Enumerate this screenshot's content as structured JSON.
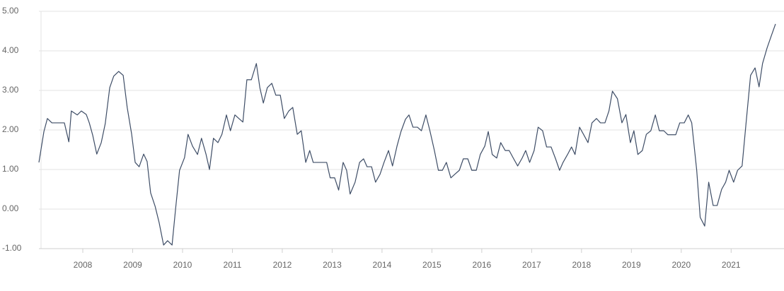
{
  "chart_data": {
    "type": "line",
    "xlim": [
      2007.12,
      2021.89
    ],
    "xticks": [
      2008,
      2009,
      2010,
      2011,
      2012,
      2013,
      2014,
      2015,
      2016,
      2017,
      2018,
      2019,
      2020,
      2021
    ],
    "ylim": [
      -1,
      5
    ],
    "yticks": [
      {
        "value": -1,
        "label": "-1.00"
      },
      {
        "value": 0,
        "label": "0.00"
      },
      {
        "value": 1,
        "label": "1.00"
      },
      {
        "value": 2,
        "label": "2.00"
      },
      {
        "value": 3,
        "label": "3.00"
      },
      {
        "value": 4,
        "label": "4.00"
      },
      {
        "value": 5,
        "label": "5.00"
      }
    ],
    "grid": true,
    "color": "#3e4d66",
    "x": [
      2007.12,
      2007.22,
      2007.29,
      2007.38,
      2007.63,
      2007.72,
      2007.77,
      2007.89,
      2007.97,
      2008.07,
      2008.13,
      2008.2,
      2008.28,
      2008.37,
      2008.45,
      2008.54,
      2008.62,
      2008.72,
      2008.81,
      2008.89,
      2008.98,
      2009.05,
      2009.13,
      2009.22,
      2009.29,
      2009.36,
      2009.45,
      2009.53,
      2009.62,
      2009.7,
      2009.79,
      2009.86,
      2009.94,
      2010.04,
      2010.11,
      2010.2,
      2010.3,
      2010.38,
      2010.47,
      2010.54,
      2010.62,
      2010.71,
      2010.79,
      2010.88,
      2010.96,
      2011.05,
      2011.13,
      2011.21,
      2011.29,
      2011.38,
      2011.48,
      2011.55,
      2011.62,
      2011.7,
      2011.79,
      2011.87,
      2011.96,
      2012.04,
      2012.13,
      2012.21,
      2012.3,
      2012.38,
      2012.47,
      2012.55,
      2012.62,
      2012.89,
      2012.96,
      2013.05,
      2013.13,
      2013.22,
      2013.29,
      2013.36,
      2013.46,
      2013.55,
      2013.63,
      2013.7,
      2013.79,
      2013.87,
      2013.96,
      2014.04,
      2014.13,
      2014.21,
      2014.3,
      2014.38,
      2014.47,
      2014.54,
      2014.62,
      2014.71,
      2014.79,
      2014.88,
      2014.96,
      2015.05,
      2015.13,
      2015.21,
      2015.29,
      2015.38,
      2015.46,
      2015.55,
      2015.63,
      2015.72,
      2015.8,
      2015.89,
      2015.97,
      2016.06,
      2016.13,
      2016.21,
      2016.3,
      2016.38,
      2016.47,
      2016.55,
      2016.64,
      2016.72,
      2016.81,
      2016.88,
      2016.96,
      2017.05,
      2017.13,
      2017.22,
      2017.3,
      2017.39,
      2017.48,
      2017.56,
      2017.63,
      2017.72,
      2017.8,
      2017.87,
      2017.96,
      2018.04,
      2018.13,
      2018.21,
      2018.3,
      2018.38,
      2018.47,
      2018.55,
      2018.62,
      2018.72,
      2018.81,
      2018.89,
      2018.98,
      2019.05,
      2019.13,
      2019.22,
      2019.3,
      2019.39,
      2019.48,
      2019.56,
      2019.65,
      2019.73,
      2019.89,
      2019.97,
      2020.06,
      2020.14,
      2020.21,
      2020.31,
      2020.38,
      2020.47,
      2020.55,
      2020.64,
      2020.72,
      2020.81,
      2020.89,
      2020.96,
      2021.05,
      2021.13,
      2021.22,
      2021.3,
      2021.39,
      2021.48,
      2021.56,
      2021.63,
      2021.72,
      2021.8,
      2021.89
    ],
    "values": [
      1.18,
      1.96,
      2.29,
      2.18,
      2.18,
      1.7,
      2.48,
      2.38,
      2.48,
      2.39,
      2.18,
      1.86,
      1.39,
      1.68,
      2.16,
      3.07,
      3.36,
      3.48,
      3.38,
      2.57,
      1.89,
      1.18,
      1.07,
      1.39,
      1.2,
      0.41,
      0.07,
      -0.34,
      -0.91,
      -0.8,
      -0.91,
      0,
      0.98,
      1.3,
      1.89,
      1.59,
      1.38,
      1.79,
      1.39,
      1.0,
      1.79,
      1.68,
      1.89,
      2.38,
      1.98,
      2.38,
      2.29,
      2.2,
      3.27,
      3.27,
      3.68,
      3.07,
      2.68,
      3.07,
      3.18,
      2.88,
      2.88,
      2.29,
      2.48,
      2.57,
      1.89,
      1.98,
      1.18,
      1.48,
      1.18,
      1.18,
      0.79,
      0.79,
      0.48,
      1.18,
      0.98,
      0.38,
      0.68,
      1.18,
      1.27,
      1.07,
      1.07,
      0.68,
      0.88,
      1.18,
      1.48,
      1.09,
      1.59,
      1.96,
      2.27,
      2.38,
      2.07,
      2.07,
      1.98,
      2.38,
      1.98,
      1.48,
      0.98,
      0.98,
      1.18,
      0.79,
      0.88,
      0.98,
      1.27,
      1.27,
      0.98,
      0.98,
      1.38,
      1.59,
      1.96,
      1.38,
      1.29,
      1.68,
      1.48,
      1.48,
      1.27,
      1.09,
      1.29,
      1.48,
      1.18,
      1.48,
      2.07,
      1.98,
      1.57,
      1.57,
      1.27,
      0.98,
      1.18,
      1.38,
      1.57,
      1.38,
      2.07,
      1.89,
      1.68,
      2.18,
      2.29,
      2.18,
      2.18,
      2.48,
      2.98,
      2.79,
      2.18,
      2.39,
      1.68,
      1.98,
      1.38,
      1.48,
      1.89,
      1.98,
      2.38,
      1.98,
      1.98,
      1.88,
      1.88,
      2.18,
      2.18,
      2.38,
      2.18,
      0.98,
      -0.21,
      -0.43,
      0.68,
      0.09,
      0.09,
      0.5,
      0.68,
      0.98,
      0.68,
      0.98,
      1.09,
      2.18,
      3.38,
      3.57,
      3.09,
      3.68,
      4.07,
      4.36,
      4.68
    ]
  }
}
